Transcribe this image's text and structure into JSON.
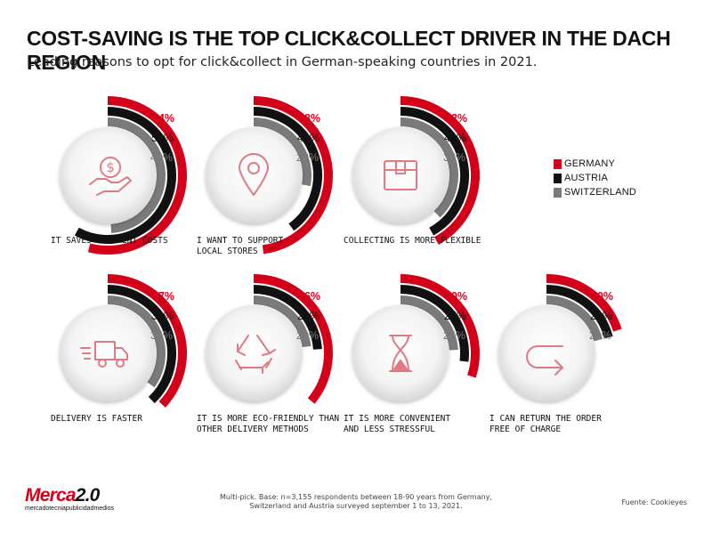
{
  "title": "COST-SAVING IS THE TOP CLICK&COLLECT DRIVER IN THE DACH REGION",
  "subtitle": "Leading reasons to opt for click&collect in German-speaking countries in 2021.",
  "legend": [
    {
      "label": "GERMANY",
      "color": "#d4001a"
    },
    {
      "label": "AUSTRIA",
      "color": "#111111"
    },
    {
      "label": "SWITZERLAND",
      "color": "#7a7a7a"
    }
  ],
  "chart_data": {
    "type": "radial-bar",
    "title": "COST-SAVING IS THE TOP CLICK&COLLECT DRIVER IN THE DACH REGION",
    "subtitle": "Leading reasons to opt for click&collect in German-speaking countries in 2021.",
    "unit": "%",
    "series_names": [
      "GERMANY",
      "AUSTRIA",
      "SWITZERLAND"
    ],
    "items": [
      {
        "label": "IT SAVES SHIPMENT COSTS",
        "icon": "dollar-hand-icon",
        "values": [
          54,
          58,
          49
        ]
      },
      {
        "label": "I WANT TO SUPPORT\nLOCAL STORES",
        "icon": "map-pin-icon",
        "values": [
          48,
          40,
          28
        ]
      },
      {
        "label": "COLLECTING IS MORE FLEXIBLE",
        "icon": "box-icon",
        "values": [
          42,
          42,
          38
        ]
      },
      {
        "label": "DELIVERY IS FASTER",
        "icon": "truck-icon",
        "values": [
          37,
          38,
          35
        ]
      },
      {
        "label": "IT IS MORE ECO-FRIENDLY THAN\nOTHER DELIVERY METHODS",
        "icon": "recycle-icon",
        "values": [
          36,
          24,
          23
        ]
      },
      {
        "label": "IT IS MORE CONVENIENT\nAND LESS STRESSFUL",
        "icon": "hourglass-icon",
        "values": [
          30,
          27,
          24
        ]
      },
      {
        "label": "I CAN RETURN THE ORDER\nFREE OF CHARGE",
        "icon": "return-arrow-icon",
        "values": [
          20,
          21,
          21
        ]
      }
    ]
  },
  "footnote": "Multi-pick. Base: n=3,155 respondents between 18-90 years from Germany,\nSwitzerland and Austria surveyed september 1 to 13, 2021.",
  "source": "Fuente: Cookieyes",
  "brand": {
    "name_part1": "Merca",
    "name_part2": "2.0",
    "tagline": "mercadotecniapublicidadmedios"
  }
}
